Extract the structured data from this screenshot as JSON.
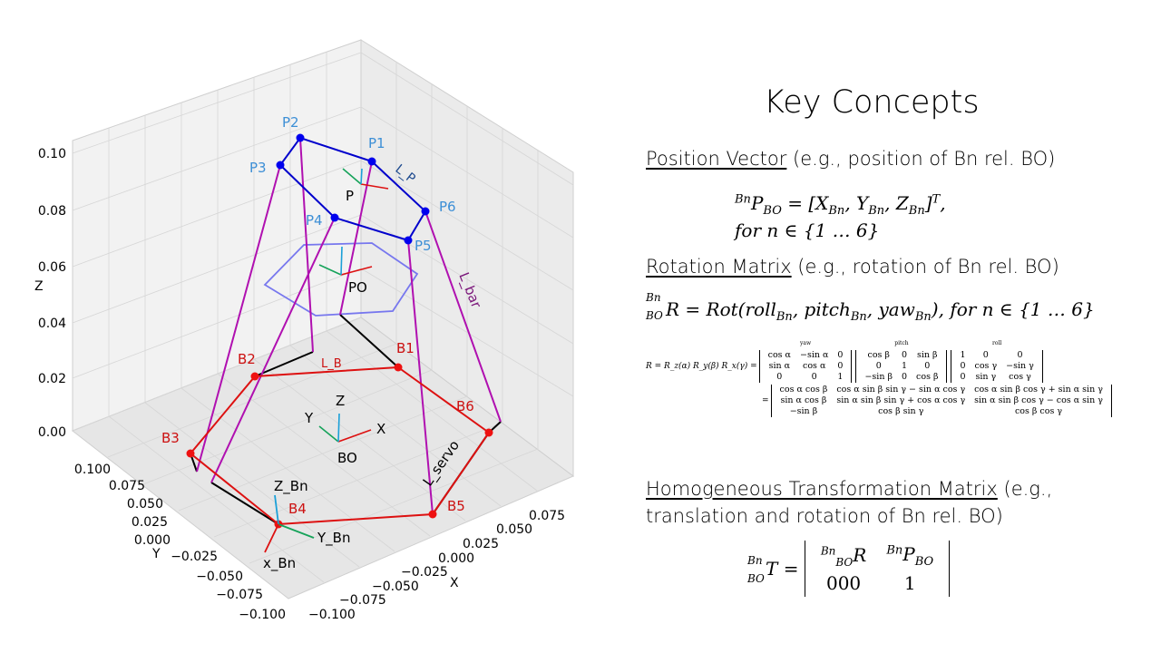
{
  "plot": {
    "axis_labels": {
      "x": "X",
      "y": "Y",
      "z": "Z"
    },
    "z_ticks": [
      "0.00",
      "0.02",
      "0.04",
      "0.06",
      "0.08",
      "0.10"
    ],
    "y_ticks": [
      "0.100",
      "0.075",
      "0.050",
      "0.025",
      "0.000",
      "−0.025",
      "−0.050",
      "−0.075",
      "−0.100"
    ],
    "x_ticks": [
      "0.075",
      "0.050",
      "0.025",
      "0.000",
      "−0.025",
      "−0.050",
      "−0.075",
      "−0.100"
    ],
    "platform_points": [
      "P1",
      "P2",
      "P3",
      "P4",
      "P5",
      "P6"
    ],
    "base_points": [
      "B1",
      "B2",
      "B3",
      "B4",
      "B5",
      "B6"
    ],
    "labels": {
      "L_P": "L_P",
      "L_bar": "L_bar",
      "L_B": "L_B",
      "L_servo": "L_servo",
      "P": "P",
      "PO": "PO",
      "BO": "BO",
      "frame_X": "X",
      "frame_Y": "Y",
      "frame_Z": "Z",
      "Z_Bn": "Z_Bn",
      "Y_Bn": "Y_Bn",
      "x_Bn": "x_Bn"
    },
    "colors": {
      "platform": "#0000cc",
      "base": "#dd1111",
      "bar": "#b010b0",
      "servo": "#000000",
      "hexagon": "#7777ee",
      "label_platform": "#3d8fd6",
      "label_base": "#cc1111",
      "axis_cyan": "#1aa0d8",
      "axis_green": "#16a35a",
      "axis_red": "#dd1111"
    }
  },
  "concepts": {
    "title": "Key Concepts",
    "position": {
      "heading": "Position Vector",
      "note": " (e.g., position of Bn rel. BO)",
      "eq_line1": "= [X",
      "eq_line2": "for n ∈ {1 … 6}"
    },
    "rotation": {
      "heading": "Rotation Matrix",
      "note": " (e.g., rotation of Bn rel. BO)",
      "eq": "R = Rot(roll",
      "eq_tail": "), for n ∈ {1 … 6}"
    },
    "rotation_detail": {
      "lhs": "R = R_z(α) R_y(β) R_x(γ) =",
      "yaw": "yaw",
      "pitch": "pitch",
      "roll": "roll",
      "eq2": "="
    },
    "homogeneous": {
      "heading": "Homogeneous Transformation Matrix",
      "note": " (e.g.,",
      "note2": "translation and rotation of Bn rel. BO)",
      "bottom_left": "000",
      "bottom_right": "1"
    }
  }
}
